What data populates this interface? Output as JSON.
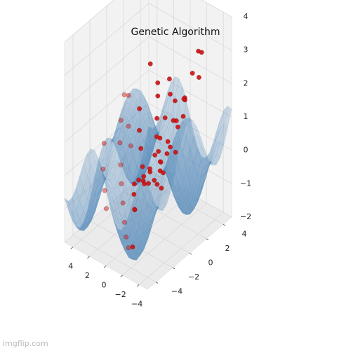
{
  "title": "Genetic Algorithm",
  "watermark": "imgflip.com",
  "chart_data": {
    "type": "surface-3d-scatter",
    "title": "Genetic Algorithm",
    "xlabel": "",
    "ylabel": "",
    "zlabel": "",
    "xlim": [
      -5,
      5
    ],
    "ylim": [
      -5,
      5
    ],
    "zlim": [
      -2,
      4
    ],
    "x_ticks": [
      "−4",
      "−2",
      "0",
      "2",
      "4"
    ],
    "y_ticks": [
      "−4",
      "−2",
      "0",
      "2",
      "4"
    ],
    "z_ticks": [
      "−2",
      "−1",
      "0",
      "1",
      "2",
      "3",
      "4"
    ],
    "grid": true,
    "surface_color": "#4f86b7",
    "point_color": "#cc1111",
    "population_points": [
      [
        -4.3,
        -4.0,
        1.2
      ],
      [
        -3.9,
        -3.1,
        0.7
      ],
      [
        -3.6,
        -2.1,
        1.0
      ],
      [
        -3.3,
        -0.9,
        1.3
      ],
      [
        -3.0,
        0.4,
        1.6
      ],
      [
        -2.8,
        1.6,
        2.0
      ],
      [
        -2.4,
        2.9,
        2.4
      ],
      [
        -2.1,
        3.9,
        2.8
      ],
      [
        -4.1,
        -2.6,
        0.9
      ],
      [
        -3.7,
        -1.4,
        1.1
      ],
      [
        -2.2,
        -3.8,
        0.5
      ],
      [
        -1.6,
        -2.7,
        0.3
      ],
      [
        -1.1,
        -1.6,
        0.1
      ],
      [
        -0.6,
        -0.4,
        0.0
      ],
      [
        -0.1,
        0.7,
        0.1
      ],
      [
        0.4,
        1.8,
        0.3
      ],
      [
        0.9,
        2.9,
        0.6
      ],
      [
        1.4,
        4.0,
        1.0
      ],
      [
        -2.6,
        -4.4,
        -1.2
      ],
      [
        -1.8,
        -4.1,
        -1.4
      ],
      [
        -1.0,
        -3.6,
        -1.3
      ],
      [
        -0.2,
        -3.0,
        -1.1
      ],
      [
        0.7,
        -2.3,
        -0.8
      ],
      [
        1.6,
        -1.6,
        -0.5
      ],
      [
        2.4,
        -0.9,
        -0.2
      ],
      [
        3.2,
        -0.2,
        0.2
      ],
      [
        3.9,
        0.6,
        0.6
      ],
      [
        4.4,
        1.5,
        1.1
      ],
      [
        -1.4,
        0.2,
        -0.6
      ],
      [
        -0.8,
        1.0,
        -0.4
      ],
      [
        0.0,
        1.5,
        -0.3
      ],
      [
        0.8,
        2.0,
        -0.2
      ],
      [
        1.6,
        2.6,
        0.0
      ],
      [
        2.3,
        3.3,
        0.3
      ],
      [
        3.0,
        4.1,
        0.7
      ],
      [
        1.1,
        0.5,
        -0.8
      ],
      [
        1.8,
        1.1,
        -0.6
      ],
      [
        2.6,
        1.7,
        -0.3
      ],
      [
        3.4,
        2.3,
        0.0
      ],
      [
        4.1,
        3.0,
        0.4
      ],
      [
        -0.5,
        2.5,
        0.8
      ],
      [
        0.2,
        3.4,
        1.1
      ],
      [
        -1.3,
        3.1,
        1.4
      ],
      [
        -2.0,
        2.2,
        1.2
      ],
      [
        2.0,
        -3.0,
        -1.0
      ],
      [
        2.8,
        -2.4,
        -0.7
      ],
      [
        3.6,
        -1.8,
        -0.3
      ],
      [
        4.3,
        -1.0,
        0.2
      ],
      [
        -3.2,
        -3.6,
        0.6
      ],
      [
        -2.9,
        -2.8,
        0.4
      ],
      [
        -4.5,
        -1.8,
        1.5
      ],
      [
        -4.2,
        -0.6,
        1.8
      ],
      [
        -1.9,
        -0.8,
        -0.2
      ],
      [
        -2.5,
        0.8,
        0.5
      ],
      [
        3.0,
        0.9,
        -0.1
      ],
      [
        3.7,
        1.3,
        0.3
      ],
      [
        4.6,
        2.2,
        0.9
      ],
      [
        1.2,
        -0.5,
        -1.0
      ],
      [
        0.4,
        -1.2,
        -1.2
      ],
      [
        -0.4,
        -2.0,
        -0.9
      ],
      [
        2.7,
        3.8,
        1.2
      ],
      [
        4.0,
        4.2,
        1.5
      ],
      [
        1.9,
        4.4,
        1.3
      ],
      [
        -3.4,
        0.9,
        2.2
      ],
      [
        -3.8,
        2.3,
        2.6
      ],
      [
        -3.0,
        3.4,
        3.0
      ]
    ]
  }
}
